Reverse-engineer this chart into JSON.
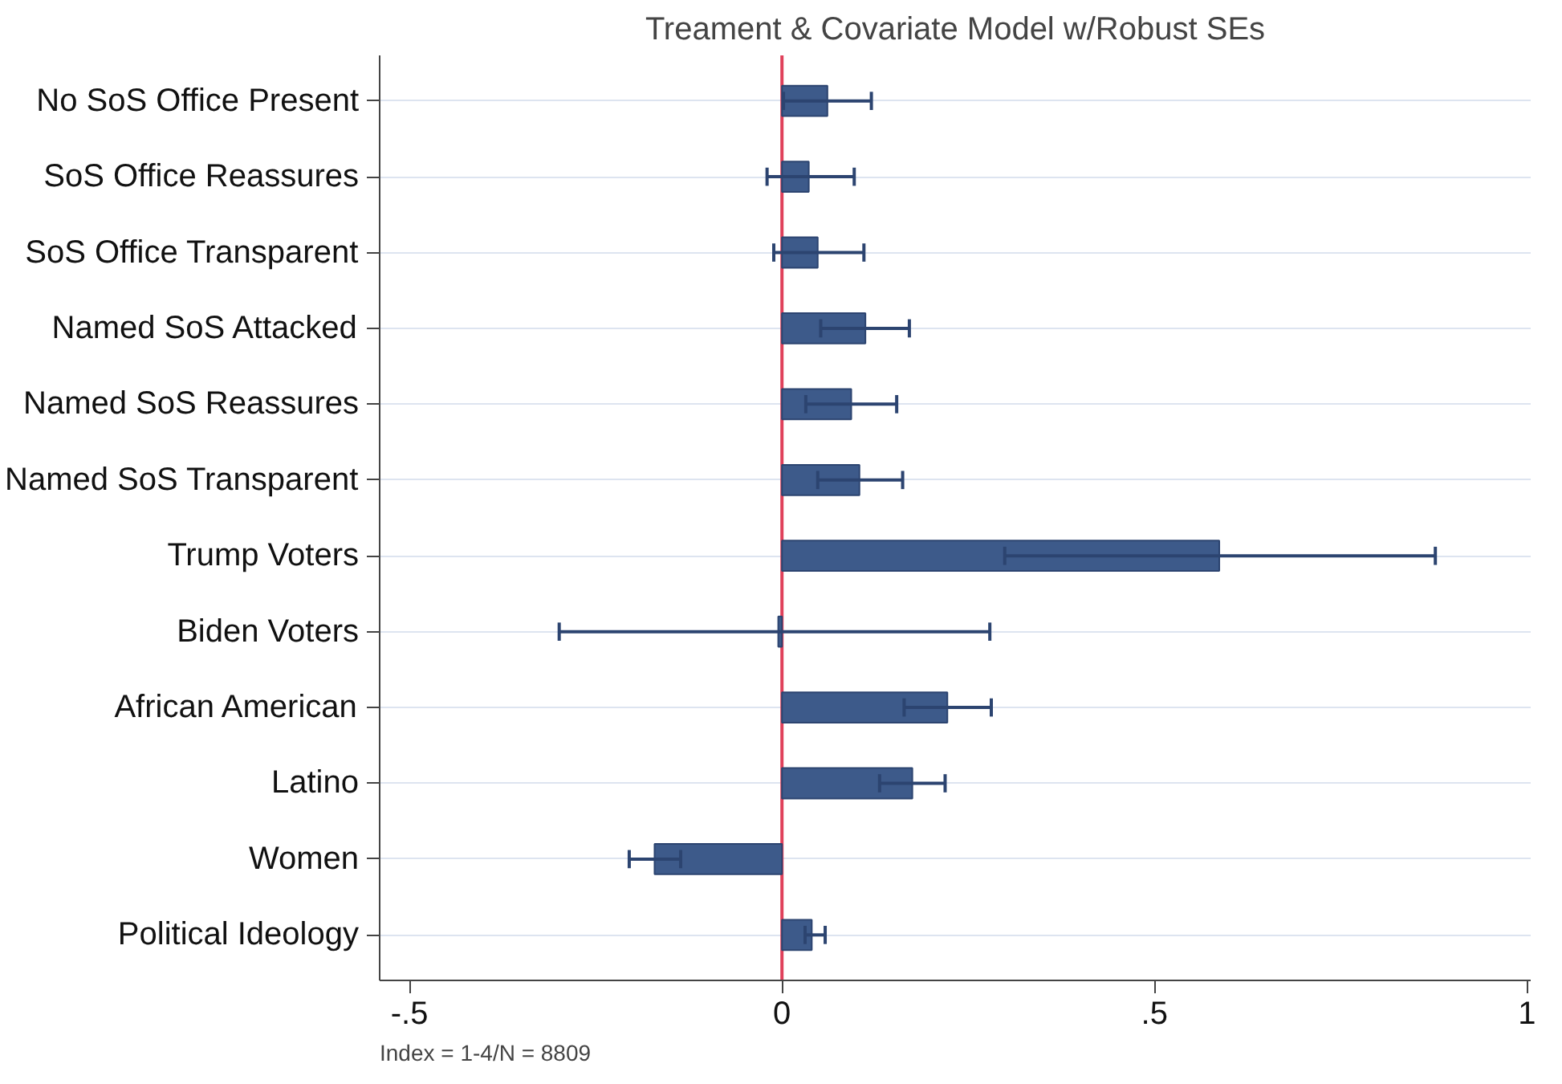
{
  "chart_data": {
    "type": "bar",
    "orientation": "horizontal",
    "title": "Treament & Covariate Model w/Robust SEs",
    "categories": [
      "No SoS Office Present",
      "SoS Office Reassures",
      "SoS Office Transparent",
      "Named SoS Attacked",
      "Named SoS Reassures",
      "Named SoS Transparent",
      "Trump Voters",
      "Biden Voters",
      "African American",
      "Latino",
      "Women",
      "Political Ideology"
    ],
    "values": [
      0.061,
      0.036,
      0.048,
      0.112,
      0.093,
      0.104,
      0.587,
      -0.005,
      0.222,
      0.175,
      -0.171,
      0.04
    ],
    "errors": [
      [
        0.002,
        0.12
      ],
      [
        -0.02,
        0.097
      ],
      [
        -0.011,
        0.11
      ],
      [
        0.052,
        0.171
      ],
      [
        0.032,
        0.154
      ],
      [
        0.048,
        0.162
      ],
      [
        0.299,
        0.877
      ],
      [
        -0.299,
        0.279
      ],
      [
        0.164,
        0.281
      ],
      [
        0.131,
        0.219
      ],
      [
        -0.205,
        -0.136
      ],
      [
        0.031,
        0.058
      ]
    ],
    "color": "#3d5a8a",
    "xlim": [
      -0.54,
      1.005
    ],
    "xticks": [
      {
        "value": -0.5,
        "label": "-.5"
      },
      0,
      {
        "value": 0.5,
        "label": ".5"
      },
      1
    ],
    "ref_lines": [
      {
        "axis": "x",
        "value": 0,
        "color": "#e0405a"
      }
    ],
    "grid": "y",
    "annotations": [
      "Index = 1-4/N = 8809"
    ]
  }
}
